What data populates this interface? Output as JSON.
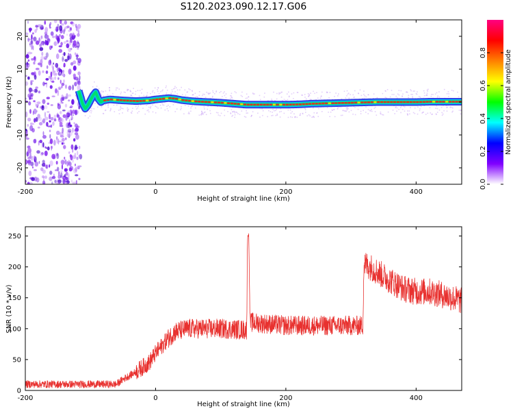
{
  "title": "S120.2023.090.12.17.G06",
  "colors": {
    "snr_line": "#e8312f",
    "axis": "#000000",
    "spec_trace_core": "#e03020",
    "spec_trace_band_inner": "#00e070",
    "spec_trace_band_outer": "#1020e0",
    "noise": "#7a20e0"
  },
  "chart_data": [
    {
      "type": "heatmap",
      "name": "spectrogram",
      "xlabel": "Height of straight line (km)",
      "ylabel": "Frequency (Hz)",
      "xlim": [
        -200,
        470
      ],
      "ylim": [
        -25,
        25
      ],
      "x_ticks": [
        -200,
        0,
        200,
        400
      ],
      "y_ticks": [
        -20,
        -10,
        0,
        10,
        20
      ],
      "colorbar": {
        "label": "Normalized spectral amplitude",
        "range": [
          0,
          1
        ],
        "ticks": [
          0.0,
          0.2,
          0.4,
          0.6,
          0.8
        ],
        "tick_labels": [
          "0.0",
          "0.2",
          "0.4",
          "0.6",
          "0.8"
        ],
        "colormap_stops": [
          "#ffffff",
          "#8000ff",
          "#0000ff",
          "#00ffff",
          "#00ff00",
          "#ffff00",
          "#ff8000",
          "#ff0000",
          "#ff0080"
        ]
      },
      "noise_region": {
        "x_from": -200,
        "x_to": -115
      },
      "dominant_frequency_trace": {
        "x": [
          -118,
          -112,
          -108,
          -104,
          -100,
          -96,
          -92,
          -88,
          -84,
          -80,
          -70,
          -50,
          -30,
          -10,
          0,
          10,
          20,
          30,
          40,
          60,
          80,
          100,
          120,
          140,
          160,
          180,
          200,
          220,
          240,
          260,
          280,
          300,
          320,
          340,
          360,
          380,
          400,
          420,
          440,
          470
        ],
        "y": [
          3.5,
          -0.5,
          -2.0,
          -1.0,
          0.5,
          2.0,
          3.0,
          1.0,
          0.0,
          0.5,
          0.8,
          0.5,
          0.3,
          0.5,
          0.8,
          1.0,
          1.2,
          1.0,
          0.6,
          0.2,
          0.0,
          -0.2,
          -0.5,
          -0.8,
          -0.8,
          -0.8,
          -0.8,
          -0.7,
          -0.5,
          -0.4,
          -0.3,
          -0.2,
          -0.1,
          0.0,
          0.0,
          0.0,
          0.0,
          0.1,
          0.1,
          0.1
        ]
      }
    },
    {
      "type": "line",
      "name": "snr",
      "xlabel": "Height of straight line (km)",
      "ylabel": "SNR (10 * v/v)",
      "xlim": [
        -200,
        470
      ],
      "ylim": [
        0,
        265
      ],
      "x_ticks": [
        -200,
        0,
        200,
        400
      ],
      "y_ticks": [
        0,
        50,
        100,
        150,
        200,
        250
      ],
      "trend": {
        "x": [
          -200,
          -150,
          -100,
          -60,
          -50,
          -30,
          -10,
          0,
          20,
          30,
          50,
          100,
          140,
          141,
          143,
          145,
          150,
          200,
          250,
          300,
          318,
          320,
          330,
          350,
          380,
          400,
          420,
          440,
          470
        ],
        "y": [
          10,
          10,
          10,
          10,
          18,
          30,
          45,
          60,
          85,
          95,
          100,
          100,
          98,
          245,
          255,
          110,
          110,
          105,
          105,
          105,
          105,
          205,
          200,
          185,
          165,
          160,
          160,
          155,
          145
        ]
      }
    }
  ]
}
